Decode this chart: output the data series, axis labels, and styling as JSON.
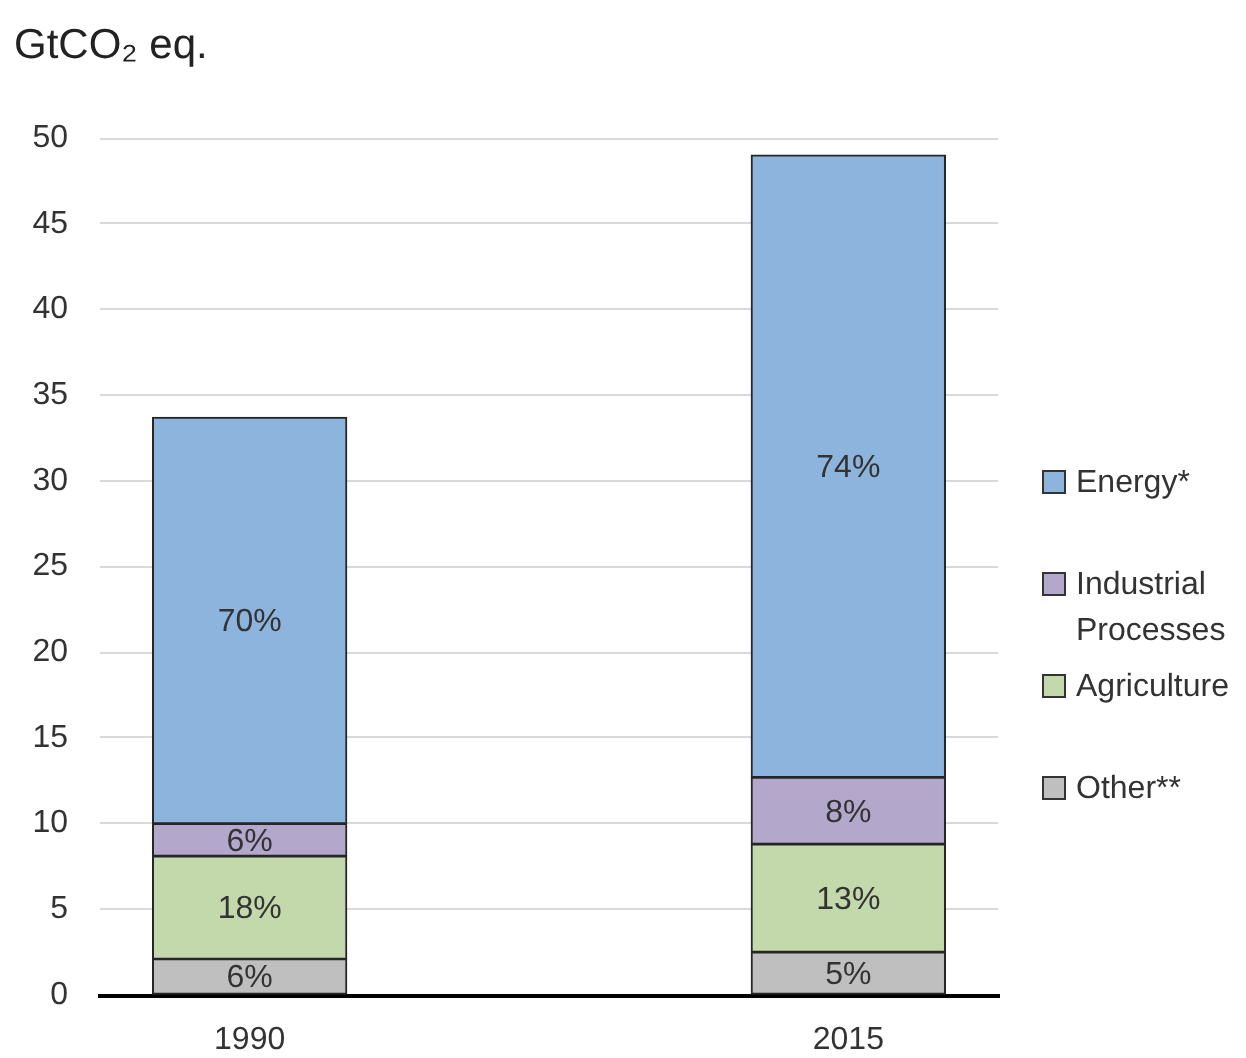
{
  "chart_data": {
    "type": "bar",
    "ylabel": "GtCO₂ eq.",
    "categories": [
      "1990",
      "2015"
    ],
    "stacked": true,
    "series": [
      {
        "name": "Other**",
        "color": "#bfbfbf",
        "values": [
          2.1,
          2.5
        ]
      },
      {
        "name": "Agriculture",
        "color": "#c3d9ab",
        "values": [
          6.0,
          6.3
        ]
      },
      {
        "name": "Industrial Processes",
        "color": "#b3a7cb",
        "values": [
          1.9,
          3.9
        ]
      },
      {
        "name": "Energy*",
        "color": "#8db4dc",
        "values": [
          23.7,
          36.3
        ]
      }
    ],
    "annotations": [
      "6%",
      "18%",
      "6%",
      "70%",
      "5%",
      "13%",
      "8%",
      "74%"
    ],
    "ylim": [
      0,
      50
    ],
    "yticks": [
      0,
      5,
      10,
      15,
      20,
      25,
      30,
      35,
      40,
      45,
      50
    ],
    "grid": "y",
    "legend": "right"
  }
}
